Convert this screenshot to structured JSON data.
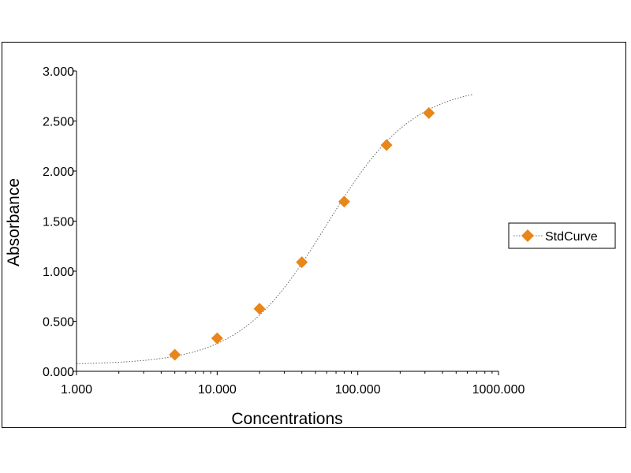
{
  "chart_data": {
    "type": "scatter",
    "title": "",
    "xlabel": "Concentrations",
    "ylabel": "Absorbance",
    "x_scale": "log",
    "xlim": [
      1,
      1000
    ],
    "ylim": [
      0,
      3
    ],
    "x_ticks": [
      1,
      10,
      100,
      1000
    ],
    "x_tick_labels": [
      "1.000",
      "10.000",
      "100.000",
      "1000.000"
    ],
    "y_ticks": [
      0,
      0.5,
      1,
      1.5,
      2,
      2.5,
      3
    ],
    "y_tick_labels": [
      "0.000",
      "0.500",
      "1.000",
      "1.500",
      "2.000",
      "2.500",
      "3.000"
    ],
    "grid": false,
    "legend_position": "right",
    "series": [
      {
        "name": "StdCurve",
        "marker": "diamond",
        "color": "#E8861A",
        "line_color": "#666666",
        "line_style": "dotted",
        "x": [
          5,
          10,
          20,
          40,
          80,
          160,
          320
        ],
        "y": [
          0.165,
          0.33,
          0.625,
          1.09,
          1.695,
          2.26,
          2.58
        ]
      }
    ],
    "fit_curve": {
      "model": "4PL",
      "A": 0.067,
      "D": 2.86,
      "C": 60,
      "B": 1.4,
      "x_range": [
        1,
        650
      ]
    }
  }
}
